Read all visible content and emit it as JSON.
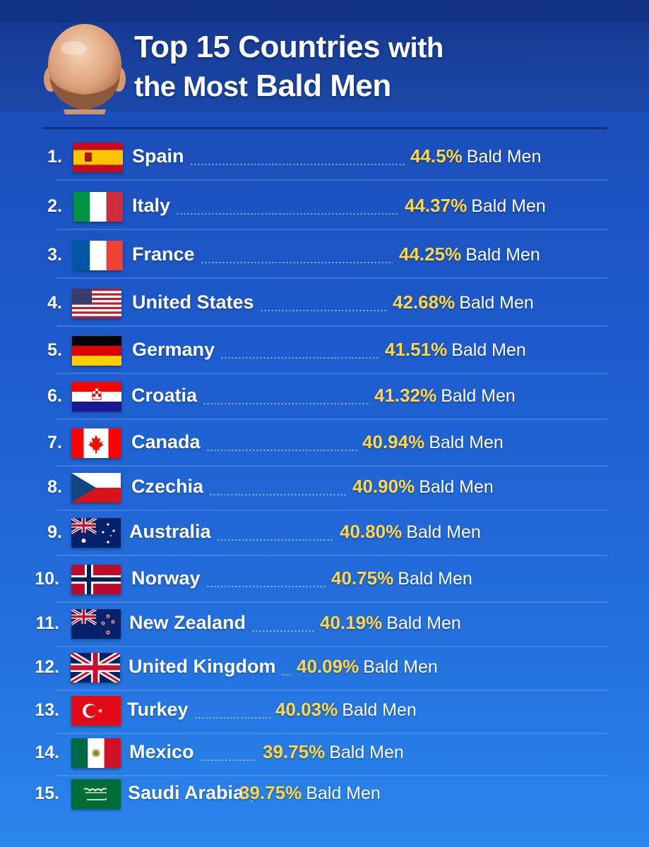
{
  "title": {
    "line1": "Top 15 Countries",
    "line1_small": "with",
    "line2_prefix": "the Most",
    "line2_big": "Bald Men"
  },
  "rows": [
    {
      "rank": "1.",
      "country": "Spain",
      "percent": "44.5%",
      "unit": "Bald Men"
    },
    {
      "rank": "2.",
      "country": "Italy",
      "percent": "44.37%",
      "unit": "Bald Men"
    },
    {
      "rank": "3.",
      "country": "France",
      "percent": "44.25%",
      "unit": "Bald Men"
    },
    {
      "rank": "4.",
      "country": "United States",
      "percent": "42.68%",
      "unit": "Bald Men"
    },
    {
      "rank": "5.",
      "country": "Germany",
      "percent": "41.51%",
      "unit": "Bald Men"
    },
    {
      "rank": "6.",
      "country": "Croatia",
      "percent": "41.32%",
      "unit": "Bald Men"
    },
    {
      "rank": "7.",
      "country": "Canada",
      "percent": "40.94%",
      "unit": "Bald Men"
    },
    {
      "rank": "8.",
      "country": "Czechia",
      "percent": "40.90%",
      "unit": "Bald Men"
    },
    {
      "rank": "9.",
      "country": "Australia",
      "percent": "40.80%",
      "unit": "Bald Men"
    },
    {
      "rank": "10.",
      "country": "Norway",
      "percent": "40.75%",
      "unit": "Bald Men"
    },
    {
      "rank": "11.",
      "country": "New Zealand",
      "percent": "40.19%",
      "unit": "Bald Men"
    },
    {
      "rank": "12.",
      "country": "United Kingdom",
      "percent": "40.09%",
      "unit": "Bald Men"
    },
    {
      "rank": "13.",
      "country": "Turkey",
      "percent": "40.03%",
      "unit": "Bald Men"
    },
    {
      "rank": "14.",
      "country": "Mexico",
      "percent": "39.75%",
      "unit": "Bald Men"
    },
    {
      "rank": "15.",
      "country": "Saudi Arabia",
      "percent": "39.75%",
      "unit": "Bald Men"
    }
  ],
  "flags": [
    "spain-flag",
    "italy-flag",
    "france-flag",
    "usa-flag",
    "germany-flag",
    "croatia-flag",
    "canada-flag",
    "czechia-flag",
    "australia-flag",
    "norway-flag",
    "new-zealand-flag",
    "uk-flag",
    "turkey-flag",
    "mexico-flag",
    "saudi-arabia-flag"
  ],
  "colors": {
    "accent": "#ffd74a",
    "background": "#1d5bcc",
    "header": "#16409c"
  }
}
